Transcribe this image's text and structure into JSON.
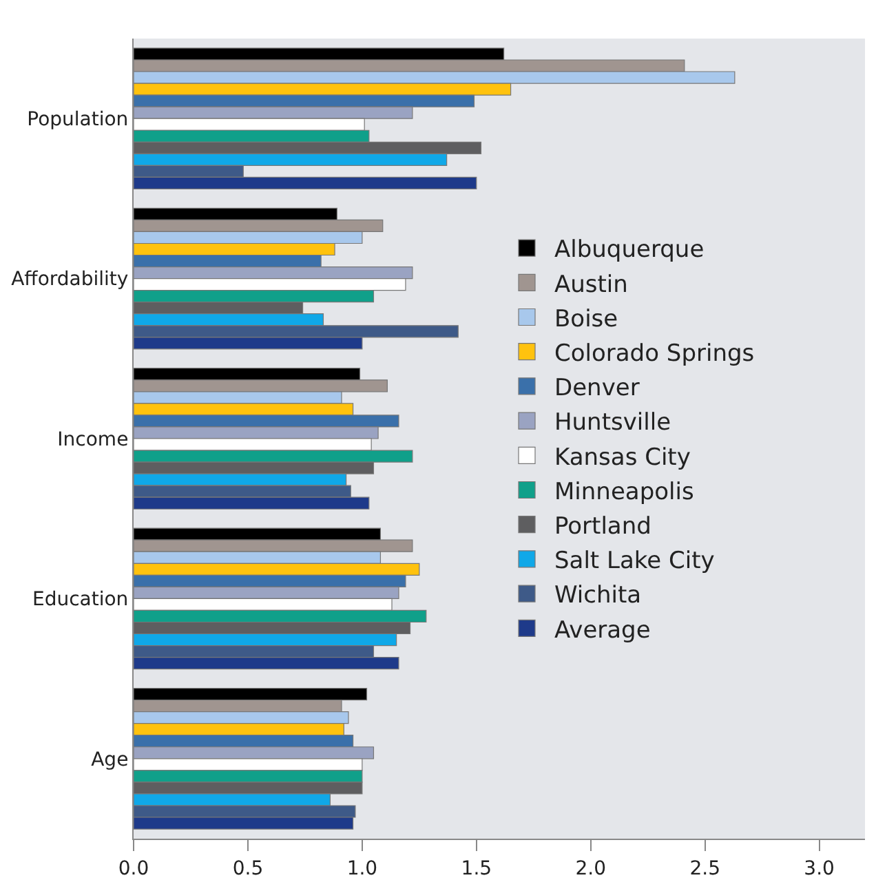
{
  "chart_data": {
    "type": "bar",
    "orientation": "horizontal",
    "categories": [
      "Population",
      "Affordability",
      "Income",
      "Education",
      "Age"
    ],
    "series": [
      {
        "name": "Albuquerque",
        "color": "#000000",
        "values": [
          1.62,
          0.89,
          0.99,
          1.08,
          1.02
        ]
      },
      {
        "name": "Austin",
        "color": "#a09590",
        "values": [
          2.41,
          1.09,
          1.11,
          1.22,
          0.91
        ]
      },
      {
        "name": "Boise",
        "color": "#a8c8ec",
        "values": [
          2.63,
          1.0,
          0.91,
          1.08,
          0.94
        ]
      },
      {
        "name": "Colorado Springs",
        "color": "#ffc20e",
        "values": [
          1.65,
          0.88,
          0.96,
          1.25,
          0.92
        ]
      },
      {
        "name": "Denver",
        "color": "#3a70aa",
        "values": [
          1.49,
          0.82,
          1.16,
          1.19,
          0.96
        ]
      },
      {
        "name": "Huntsville",
        "color": "#9aa3c2",
        "values": [
          1.22,
          1.22,
          1.07,
          1.16,
          1.05
        ]
      },
      {
        "name": "Kansas City",
        "color": "#ffffff",
        "values": [
          1.01,
          1.19,
          1.04,
          1.13,
          1.0
        ]
      },
      {
        "name": "Minneapolis",
        "color": "#10a08a",
        "values": [
          1.03,
          1.05,
          1.22,
          1.28,
          1.0
        ]
      },
      {
        "name": "Portland",
        "color": "#5e5e60",
        "values": [
          1.52,
          0.74,
          1.05,
          1.21,
          1.0
        ]
      },
      {
        "name": "Salt Lake City",
        "color": "#10a8e8",
        "values": [
          1.37,
          0.83,
          0.93,
          1.15,
          0.86
        ]
      },
      {
        "name": "Wichita",
        "color": "#3e5a88",
        "values": [
          0.48,
          1.42,
          0.95,
          1.05,
          0.97
        ]
      },
      {
        "name": "Average",
        "color": "#1e3a8a",
        "values": [
          1.5,
          1.0,
          1.03,
          1.16,
          0.96
        ]
      }
    ],
    "xlim": [
      0,
      3.2
    ],
    "xticks": [
      {
        "value": 0,
        "label": "0.0"
      },
      {
        "value": 0.5,
        "label": "0.5"
      },
      {
        "value": 1,
        "label": "1.0"
      },
      {
        "value": 1.5,
        "label": "1.5"
      },
      {
        "value": 2,
        "label": "2.0"
      },
      {
        "value": 2.5,
        "label": "2.5"
      },
      {
        "value": 3,
        "label": "3.0"
      }
    ],
    "grid": false,
    "legend": "right"
  }
}
